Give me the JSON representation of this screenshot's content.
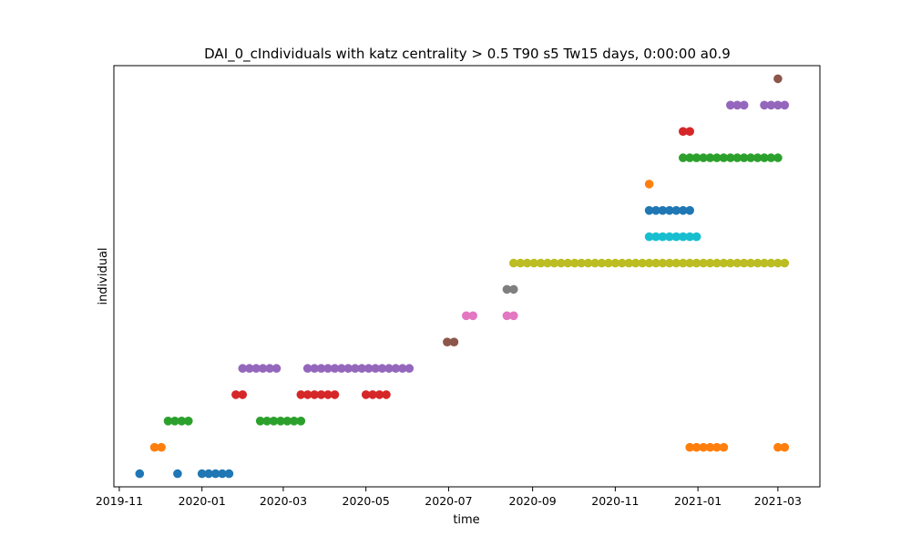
{
  "chart_data": {
    "type": "scatter",
    "title": "DAI_0_cIndividuals with katz centrality > 0.5 T90 s5 Tw15 days, 0:00:00 a0.9",
    "xlabel": "time",
    "ylabel": "individual",
    "xlim": [
      "2019-10-28",
      "2021-04-01"
    ],
    "ylim": [
      -0.5,
      15.5
    ],
    "y_ticks_shown": false,
    "grid": false,
    "legend": "none",
    "x_ticks": [
      "2019-11",
      "2020-01",
      "2020-03",
      "2020-05",
      "2020-07",
      "2020-09",
      "2020-11",
      "2021-01",
      "2021-03"
    ],
    "x_tick_dates": [
      "2019-11-01",
      "2020-01-01",
      "2020-03-01",
      "2020-05-01",
      "2020-07-01",
      "2020-09-01",
      "2020-11-01",
      "2021-01-01",
      "2021-03-01"
    ],
    "series": [
      {
        "color": "#1f77b4",
        "y": 0,
        "x": [
          "2019-11-16",
          "2019-12-14",
          "2020-01-01",
          "2020-01-06",
          "2020-01-11",
          "2020-01-16",
          "2020-01-21"
        ]
      },
      {
        "color": "#ff7f0e",
        "y": 1,
        "x": [
          "2019-11-27",
          "2019-12-02",
          "2020-12-26",
          "2020-12-31",
          "2021-01-05",
          "2021-01-10",
          "2021-01-15",
          "2021-01-20",
          "2021-03-01",
          "2021-03-06"
        ]
      },
      {
        "color": "#2ca02c",
        "y": 2,
        "x": [
          "2019-12-07",
          "2019-12-12",
          "2019-12-17",
          "2019-12-22",
          "2020-02-13",
          "2020-02-18",
          "2020-02-23",
          "2020-02-28",
          "2020-03-04",
          "2020-03-09",
          "2020-03-14"
        ]
      },
      {
        "color": "#d62728",
        "y": 3,
        "x": [
          "2020-01-26",
          "2020-01-31",
          "2020-03-14",
          "2020-03-19",
          "2020-03-24",
          "2020-03-29",
          "2020-04-03",
          "2020-04-08",
          "2020-05-01",
          "2020-05-06",
          "2020-05-11",
          "2020-05-16"
        ]
      },
      {
        "color": "#9467bd",
        "y": 4,
        "x": [
          "2020-01-31",
          "2020-02-05",
          "2020-02-10",
          "2020-02-15",
          "2020-02-20",
          "2020-02-25",
          "2020-03-19",
          "2020-03-24",
          "2020-03-29",
          "2020-04-03",
          "2020-04-08",
          "2020-04-13",
          "2020-04-18",
          "2020-04-23",
          "2020-04-28",
          "2020-05-03",
          "2020-05-08",
          "2020-05-13",
          "2020-05-18",
          "2020-05-23",
          "2020-05-28",
          "2020-06-02"
        ]
      },
      {
        "color": "#8c564b",
        "y": 5,
        "x": [
          "2020-06-30",
          "2020-07-05"
        ]
      },
      {
        "color": "#e377c2",
        "y": 6,
        "x": [
          "2020-07-14",
          "2020-07-19",
          "2020-08-13",
          "2020-08-18"
        ]
      },
      {
        "color": "#7f7f7f",
        "y": 7,
        "x": [
          "2020-08-13",
          "2020-08-18"
        ]
      },
      {
        "color": "#bcbd22",
        "y": 8,
        "x": [
          "2020-08-18",
          "2020-08-23",
          "2020-08-28",
          "2020-09-02",
          "2020-09-07",
          "2020-09-12",
          "2020-09-17",
          "2020-09-22",
          "2020-09-27",
          "2020-10-02",
          "2020-10-07",
          "2020-10-12",
          "2020-10-17",
          "2020-10-22",
          "2020-10-27",
          "2020-11-01",
          "2020-11-06",
          "2020-11-11",
          "2020-11-16",
          "2020-11-21",
          "2020-11-26",
          "2020-12-01",
          "2020-12-06",
          "2020-12-11",
          "2020-12-16",
          "2020-12-21",
          "2020-12-26",
          "2020-12-31",
          "2021-01-05",
          "2021-01-10",
          "2021-01-15",
          "2021-01-20",
          "2021-01-25",
          "2021-01-30",
          "2021-02-04",
          "2021-02-09",
          "2021-02-14",
          "2021-02-19",
          "2021-02-24",
          "2021-03-01",
          "2021-03-06"
        ]
      },
      {
        "color": "#17becf",
        "y": 9,
        "x": [
          "2020-11-26",
          "2020-12-01",
          "2020-12-06",
          "2020-12-11",
          "2020-12-16",
          "2020-12-21",
          "2020-12-26",
          "2020-12-31"
        ]
      },
      {
        "color": "#1f77b4",
        "y": 10,
        "x": [
          "2020-11-26",
          "2020-12-01",
          "2020-12-06",
          "2020-12-11",
          "2020-12-16",
          "2020-12-21",
          "2020-12-26"
        ]
      },
      {
        "color": "#ff7f0e",
        "y": 11,
        "x": [
          "2020-11-26"
        ]
      },
      {
        "color": "#2ca02c",
        "y": 12,
        "x": [
          "2020-12-21",
          "2020-12-26",
          "2020-12-31",
          "2021-01-05",
          "2021-01-10",
          "2021-01-15",
          "2021-01-20",
          "2021-01-25",
          "2021-01-30",
          "2021-02-04",
          "2021-02-09",
          "2021-02-14",
          "2021-02-19",
          "2021-02-24",
          "2021-03-01"
        ]
      },
      {
        "color": "#d62728",
        "y": 13,
        "x": [
          "2020-12-21",
          "2020-12-26"
        ]
      },
      {
        "color": "#9467bd",
        "y": 14,
        "x": [
          "2021-01-25",
          "2021-01-30",
          "2021-02-04",
          "2021-02-19",
          "2021-02-24",
          "2021-03-01",
          "2021-03-06"
        ]
      },
      {
        "color": "#8c564b",
        "y": 15,
        "x": [
          "2021-03-01"
        ]
      }
    ]
  }
}
